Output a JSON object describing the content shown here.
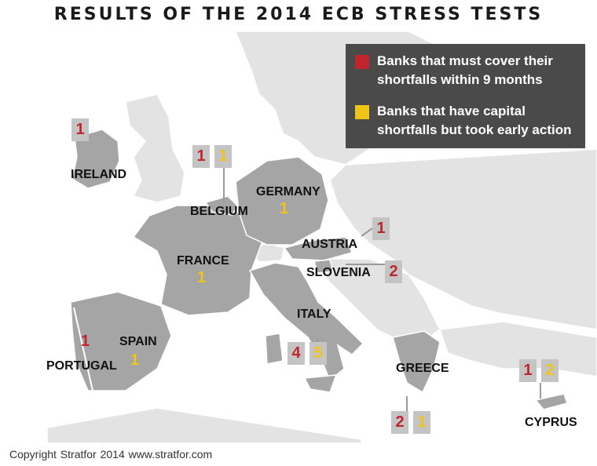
{
  "title": "RESULTS OF THE 2014 ECB STRESS TESTS",
  "colors": {
    "must_cover": "#c0252e",
    "early_action": "#f0c419",
    "legend_bg": "#4a4a4a"
  },
  "legend": [
    {
      "text": "Banks that must cover their shortfalls within 9 months",
      "color": "#c0252e"
    },
    {
      "text": "Banks that have capital shortfalls but took early action",
      "color": "#f0c419"
    }
  ],
  "countries": {
    "ireland": {
      "label": "IRELAND",
      "must_cover": "1"
    },
    "belgium": {
      "label": "BELGIUM",
      "must_cover": "1",
      "early_action": "1"
    },
    "germany": {
      "label": "GERMANY",
      "early_action": "1"
    },
    "austria": {
      "label": "AUSTRIA",
      "must_cover": "1"
    },
    "france": {
      "label": "FRANCE",
      "early_action": "1"
    },
    "slovenia": {
      "label": "SLOVENIA",
      "must_cover": "2"
    },
    "italy": {
      "label": "ITALY",
      "must_cover": "4",
      "early_action": "5"
    },
    "portugal": {
      "label": "PORTUGAL",
      "must_cover": "1"
    },
    "spain": {
      "label": "SPAIN",
      "early_action": "1"
    },
    "greece": {
      "label": "GREECE",
      "must_cover": "2",
      "early_action": "1"
    },
    "cyprus": {
      "label": "CYPRUS",
      "must_cover": "1",
      "early_action": "2"
    }
  },
  "footer": "Copyright Stratfor 2014   www.stratfor.com"
}
